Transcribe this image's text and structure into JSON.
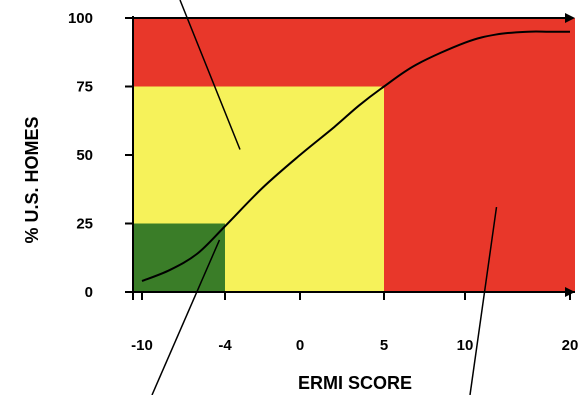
{
  "chart_data": {
    "type": "line",
    "title": "",
    "xlabel": "ERMI SCORE",
    "ylabel": "% U.S. HOMES",
    "xlim": [
      -10,
      20
    ],
    "ylim": [
      0,
      100
    ],
    "x_ticks": [
      {
        "value": -10,
        "label": "-10"
      },
      {
        "value": -4,
        "label": "-4"
      },
      {
        "value": 0,
        "label": "0"
      },
      {
        "value": 5,
        "label": "5"
      },
      {
        "value": 10,
        "label": "10"
      },
      {
        "value": 20,
        "label": "20"
      }
    ],
    "y_ticks": [
      {
        "value": 0,
        "label": "0"
      },
      {
        "value": 25,
        "label": "25"
      },
      {
        "value": 50,
        "label": "50"
      },
      {
        "value": 75,
        "label": "75"
      },
      {
        "value": 100,
        "label": "100"
      }
    ],
    "x_scale_note": "piecewise axis: tick labels are not evenly spaced in value",
    "regions": [
      {
        "name": "background-red",
        "x": [
          -10,
          20
        ],
        "y": [
          0,
          100
        ],
        "color": "#e8372a"
      },
      {
        "name": "yellow-zone",
        "x": [
          -10,
          5
        ],
        "y": [
          0,
          75
        ],
        "color": "#f6f25a"
      },
      {
        "name": "green-zone",
        "x": [
          -10,
          -4
        ],
        "y": [
          0,
          25
        ],
        "color": "#3a7d28"
      }
    ],
    "series": [
      {
        "x": [
          -10,
          -8,
          -6,
          -4,
          -2,
          0,
          2,
          3.5,
          5,
          7,
          10,
          13,
          16,
          18,
          20
        ],
        "y": [
          4,
          8,
          14,
          24,
          38,
          50,
          60,
          68,
          75,
          83,
          91,
          94,
          95,
          95,
          95
        ]
      }
    ],
    "pointer_lines": [
      {
        "from": [
          -3.2,
          52
        ],
        "to": "top"
      },
      {
        "from": [
          -4.4,
          19
        ],
        "to": "bottom"
      },
      {
        "from": [
          13,
          31
        ],
        "to": "bottom"
      }
    ],
    "grid": false,
    "legend": "none"
  }
}
